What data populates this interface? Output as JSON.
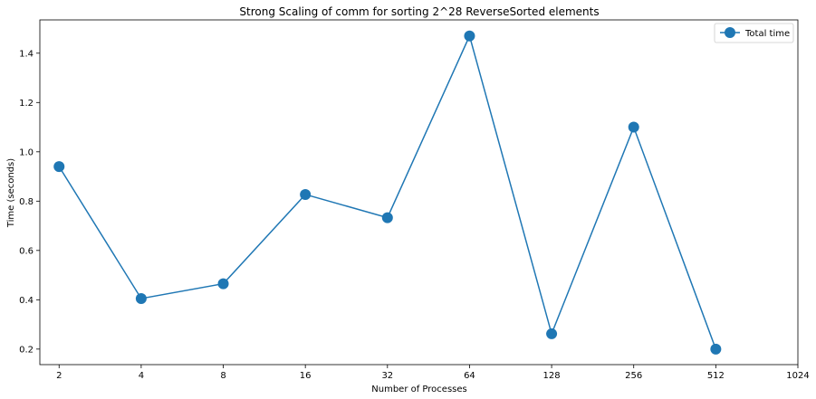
{
  "chart_data": {
    "type": "line",
    "title": "Strong Scaling of comm for sorting 2^28 ReverseSorted elements",
    "xlabel": "Number of Processes",
    "ylabel": "Time (seconds)",
    "x_scale": "log2",
    "x_ticks": [
      2,
      4,
      8,
      16,
      32,
      64,
      128,
      256,
      512,
      1024
    ],
    "x_tick_labels": [
      "2",
      "4",
      "8",
      "16",
      "32",
      "64",
      "128",
      "256",
      "512",
      "1024"
    ],
    "xlim": [
      1.7,
      1024
    ],
    "y_ticks": [
      0.2,
      0.4,
      0.6,
      0.8,
      1.0,
      1.2,
      1.4
    ],
    "y_tick_labels": [
      "0.2",
      "0.4",
      "0.6",
      "0.8",
      "1.0",
      "1.2",
      "1.4"
    ],
    "ylim": [
      0.137,
      1.535
    ],
    "grid": false,
    "legend_position": "top-right",
    "series": [
      {
        "name": "Total time",
        "color": "#1f77b4",
        "marker": "circle",
        "x": [
          2,
          4,
          8,
          16,
          32,
          64,
          128,
          256,
          512
        ],
        "y": [
          0.94,
          0.405,
          0.465,
          0.827,
          0.733,
          1.47,
          0.262,
          1.1,
          0.2
        ]
      }
    ]
  }
}
